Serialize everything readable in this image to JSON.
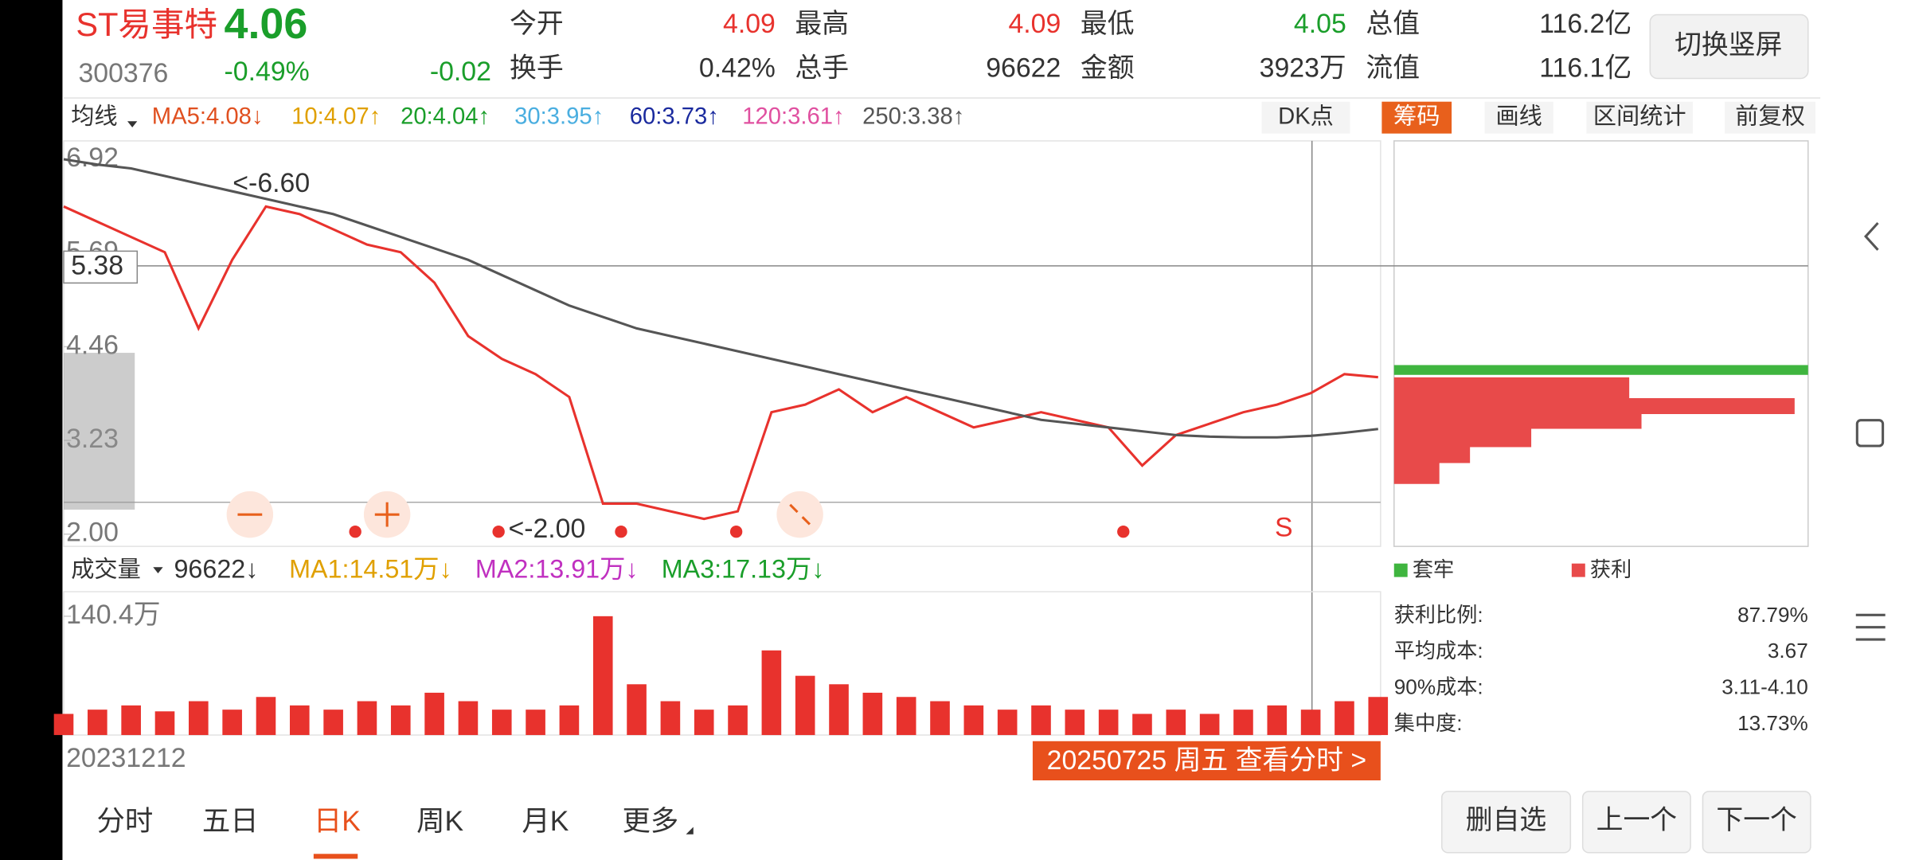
{
  "header": {
    "name": "ST易事特",
    "price": "4.06",
    "code": "300376",
    "change_pct": "-0.49%",
    "change": "-0.02"
  },
  "quote": [
    [
      "今开",
      "4.09"
    ],
    [
      "最高",
      "4.09"
    ],
    [
      "最低",
      "4.05"
    ],
    [
      "总值",
      "116.2亿"
    ],
    [
      "换手",
      "0.42%"
    ],
    [
      "总手",
      "96622"
    ],
    [
      "金额",
      "3923万"
    ],
    [
      "流值",
      "116.1亿"
    ]
  ],
  "rotate_button": "切换竖屏",
  "ma_row": {
    "label": "均线",
    "items": [
      "MA5:4.08↓",
      "10:4.07↑",
      "20:4.04↑",
      "30:3.95↑",
      "60:3.73↑",
      "120:3.61↑",
      "250:3.38↑"
    ]
  },
  "tools": [
    "DK点",
    "筹码",
    "画线",
    "区间统计",
    "前复权"
  ],
  "annotations": {
    "high": "<-6.60",
    "low": "<-2.00",
    "crosshair": "5.38",
    "signal": "S"
  },
  "volume_row": {
    "label": "成交量",
    "items": [
      "96622↓",
      "MA1:14.51万↓",
      "MA2:13.91万↓",
      "MA3:17.13万↓"
    ]
  },
  "chips_legend": [
    "套牢",
    "获利"
  ],
  "stats": [
    [
      "获利比例:",
      "87.79%"
    ],
    [
      "平均成本:",
      "3.67"
    ],
    [
      "90%成本:",
      "3.11-4.10"
    ],
    [
      "集中度:",
      "13.73%"
    ]
  ],
  "start_date": "20231212",
  "cursor_date": "20250725 周五 查看分时 >",
  "tabs": [
    "分时",
    "五日",
    "日K",
    "周K",
    "月K",
    "更多"
  ],
  "buttons": [
    "删自选",
    "上一个",
    "下一个"
  ],
  "chart_data": [
    {
      "type": "line",
      "ylim": [
        2,
        6.92
      ],
      "yticks": [
        6.92,
        5.69,
        4.46,
        3.23,
        {
          "value": 2,
          "label": "2.00"
        }
      ],
      "series": [
        {
          "color": "#e8322d",
          "values": [
            6.3,
            6.1,
            5.9,
            5.7,
            4.7,
            5.6,
            6.3,
            6.2,
            6.0,
            5.8,
            5.7,
            5.3,
            4.6,
            4.3,
            4.1,
            3.8,
            2.4,
            2.4,
            2.3,
            2.2,
            2.3,
            3.6,
            3.7,
            3.9,
            3.6,
            3.8,
            3.6,
            3.4,
            3.5,
            3.6,
            3.5,
            3.4,
            2.9,
            3.3,
            3.45,
            3.6,
            3.7,
            3.85,
            4.1,
            4.06
          ]
        },
        {
          "color": "#555555",
          "values": [
            6.92,
            6.85,
            6.8,
            6.7,
            6.6,
            6.5,
            6.4,
            6.3,
            6.2,
            6.05,
            5.9,
            5.75,
            5.6,
            5.4,
            5.2,
            5.0,
            4.85,
            4.7,
            4.6,
            4.5,
            4.4,
            4.3,
            4.2,
            4.1,
            4.0,
            3.9,
            3.8,
            3.7,
            3.6,
            3.5,
            3.45,
            3.4,
            3.35,
            3.3,
            3.28,
            3.27,
            3.27,
            3.29,
            3.33,
            3.38
          ]
        }
      ]
    },
    {
      "type": "bar",
      "ylim": [
        0,
        140.4
      ],
      "yticks": [
        {
          "value": 140.4,
          "label": "140.4万"
        }
      ],
      "color": "#e8322d",
      "values": [
        25,
        30,
        35,
        28,
        40,
        30,
        45,
        35,
        30,
        40,
        35,
        50,
        40,
        30,
        30,
        35,
        140.4,
        60,
        40,
        30,
        35,
        100,
        70,
        60,
        50,
        45,
        40,
        35,
        30,
        35,
        30,
        30,
        25,
        30,
        25,
        30,
        35,
        30,
        40,
        45
      ]
    }
  ]
}
